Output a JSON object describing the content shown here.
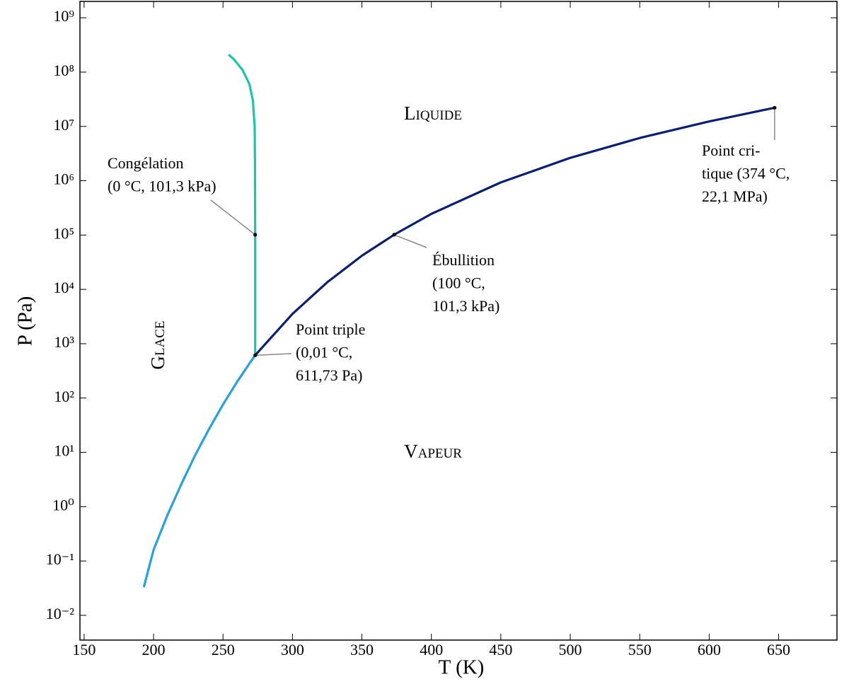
{
  "chart_data": {
    "type": "line",
    "x_label": "T (K)",
    "y_label": "P (Pa)",
    "xlim": [
      147,
      692
    ],
    "xticks": [
      150,
      200,
      250,
      300,
      350,
      400,
      450,
      500,
      550,
      600,
      650
    ],
    "ylim": [
      0.0035,
      2000000000
    ],
    "y_scale": "log",
    "yticks": [
      {
        "value": 0.01,
        "label": "10⁻²"
      },
      {
        "value": 0.1,
        "label": "10⁻¹"
      },
      {
        "value": 1,
        "label": "10⁰"
      },
      {
        "value": 10,
        "label": "10¹"
      },
      {
        "value": 100,
        "label": "10²"
      },
      {
        "value": 1000,
        "label": "10³"
      },
      {
        "value": 10000,
        "label": "10⁴"
      },
      {
        "value": 100000,
        "label": "10⁵"
      },
      {
        "value": 1000000,
        "label": "10⁶"
      },
      {
        "value": 10000000,
        "label": "10⁷"
      },
      {
        "value": 100000000,
        "label": "10⁸"
      },
      {
        "value": 1000000000,
        "label": "10⁹"
      }
    ],
    "grid": false,
    "series": [
      {
        "color": "#2a9fd9",
        "x": [
          193,
          200,
          210,
          220,
          230,
          240,
          250,
          260,
          270,
          273.16
        ],
        "values": [
          0.033,
          0.16,
          0.7,
          2.6,
          8.9,
          27,
          76,
          196,
          470,
          611.73
        ]
      },
      {
        "color": "#1fc4a6",
        "x": [
          273.16,
          273.15,
          273,
          272.8,
          271.5,
          269,
          264,
          258,
          254
        ],
        "values": [
          611.73,
          101300,
          2000000,
          10000000,
          30000000,
          60000000,
          110000000,
          170000000,
          210000000
        ]
      },
      {
        "color": "#0b1f6b",
        "x": [
          273.16,
          300,
          325,
          350,
          373.15,
          400,
          450,
          500,
          550,
          600,
          647.1
        ],
        "values": [
          611.73,
          3540,
          13500,
          41700,
          101300,
          245600,
          932000,
          2640000,
          6120000,
          12340000,
          22064000
        ]
      }
    ],
    "regions": [
      "Liquide",
      "Vapeur",
      "Glace"
    ],
    "annotations": [
      {
        "lines": [
          "Congélation",
          "(0 °C, 101,3 kPa)"
        ]
      },
      {
        "lines": [
          "Point triple",
          "(0,01 °C,",
          "611,73 Pa)"
        ]
      },
      {
        "lines": [
          "Ébullition",
          "(100 °C,",
          "101,3 kPa)"
        ]
      },
      {
        "lines": [
          "Point cri-",
          "tique (374 °C,",
          "22,1 MPa)"
        ]
      }
    ]
  }
}
